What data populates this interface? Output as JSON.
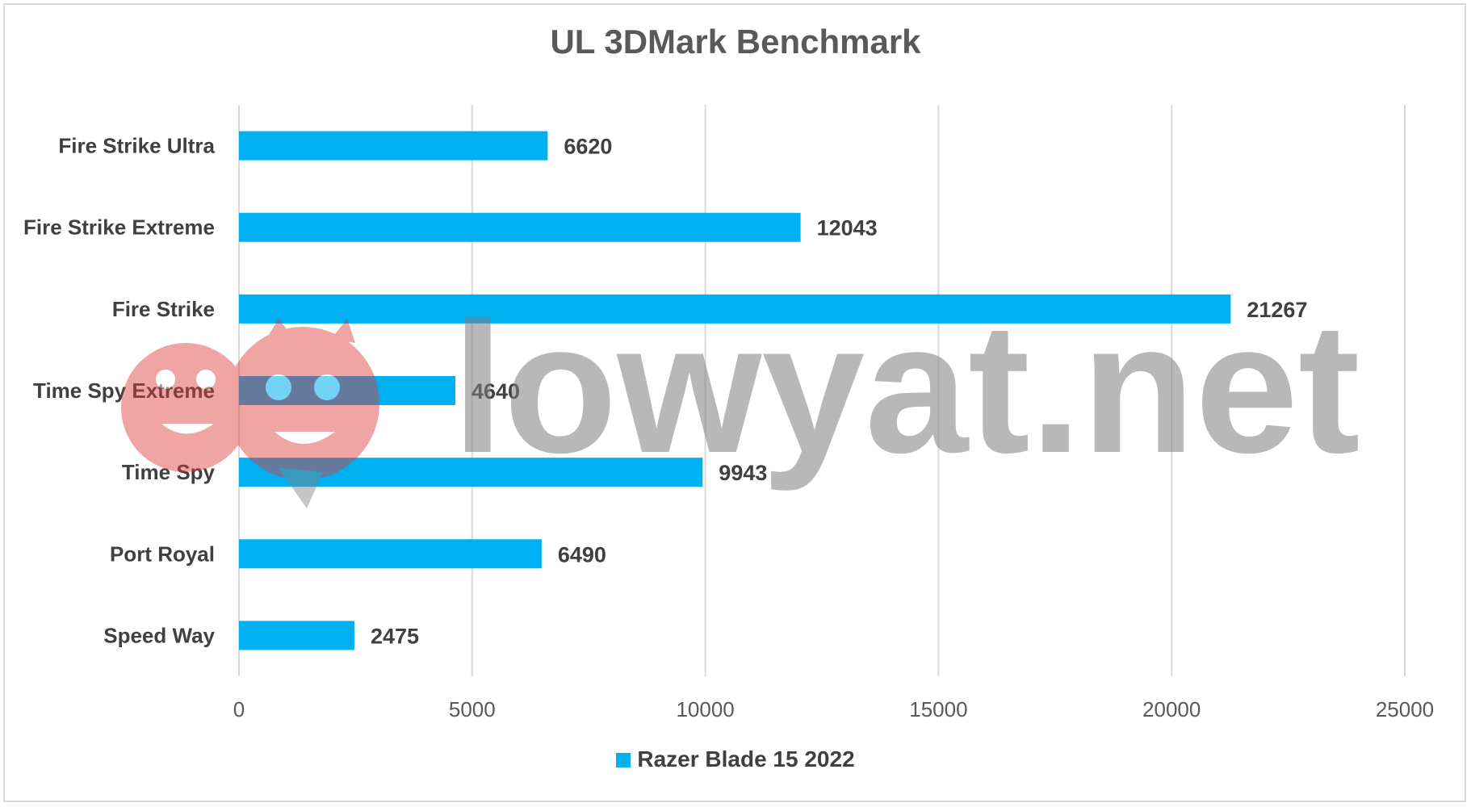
{
  "chart_data": {
    "type": "bar",
    "orientation": "horizontal",
    "title": "UL 3DMark Benchmark",
    "xlabel": "",
    "ylabel": "",
    "categories": [
      "Fire Strike Ultra",
      "Fire Strike Extreme",
      "Fire Strike",
      "Time Spy Extreme",
      "Time Spy",
      "Port Royal",
      "Speed Way"
    ],
    "series": [
      {
        "name": "Razer Blade 15 2022",
        "values": [
          6620,
          12043,
          21267,
          4640,
          9943,
          6490,
          2475
        ],
        "color": "#00b0f0"
      }
    ],
    "xlim": [
      0,
      25000
    ],
    "xticks": [
      0,
      5000,
      10000,
      15000,
      20000,
      25000
    ],
    "grid": true,
    "legend": "bottom",
    "data_labels": true
  },
  "watermark": {
    "text": "lowyat.net"
  }
}
